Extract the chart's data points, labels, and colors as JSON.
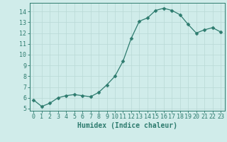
{
  "xlabel": "Humidex (Indice chaleur)",
  "x": [
    0,
    1,
    2,
    3,
    4,
    5,
    6,
    7,
    8,
    9,
    10,
    11,
    12,
    13,
    14,
    15,
    16,
    17,
    18,
    19,
    20,
    21,
    22,
    23
  ],
  "y": [
    5.8,
    5.2,
    5.5,
    6.0,
    6.2,
    6.3,
    6.2,
    6.1,
    6.5,
    7.2,
    8.0,
    9.4,
    11.5,
    13.1,
    13.4,
    14.1,
    14.3,
    14.1,
    13.7,
    12.8,
    12.0,
    12.3,
    12.5,
    12.1
  ],
  "line_color": "#2d7b6e",
  "marker_color": "#2d7b6e",
  "bg_color": "#d0ecea",
  "grid_color": "#b8d8d5",
  "axis_color": "#2d7b6e",
  "tick_color": "#2d7b6e",
  "label_color": "#2d7b6e",
  "ylim": [
    4.8,
    14.8
  ],
  "xlim": [
    -0.5,
    23.5
  ],
  "yticks": [
    5,
    6,
    7,
    8,
    9,
    10,
    11,
    12,
    13,
    14
  ],
  "xticks": [
    0,
    1,
    2,
    3,
    4,
    5,
    6,
    7,
    8,
    9,
    10,
    11,
    12,
    13,
    14,
    15,
    16,
    17,
    18,
    19,
    20,
    21,
    22,
    23
  ],
  "xlabel_fontsize": 7,
  "tick_fontsize": 6,
  "marker_size": 2.5,
  "linewidth": 0.9
}
